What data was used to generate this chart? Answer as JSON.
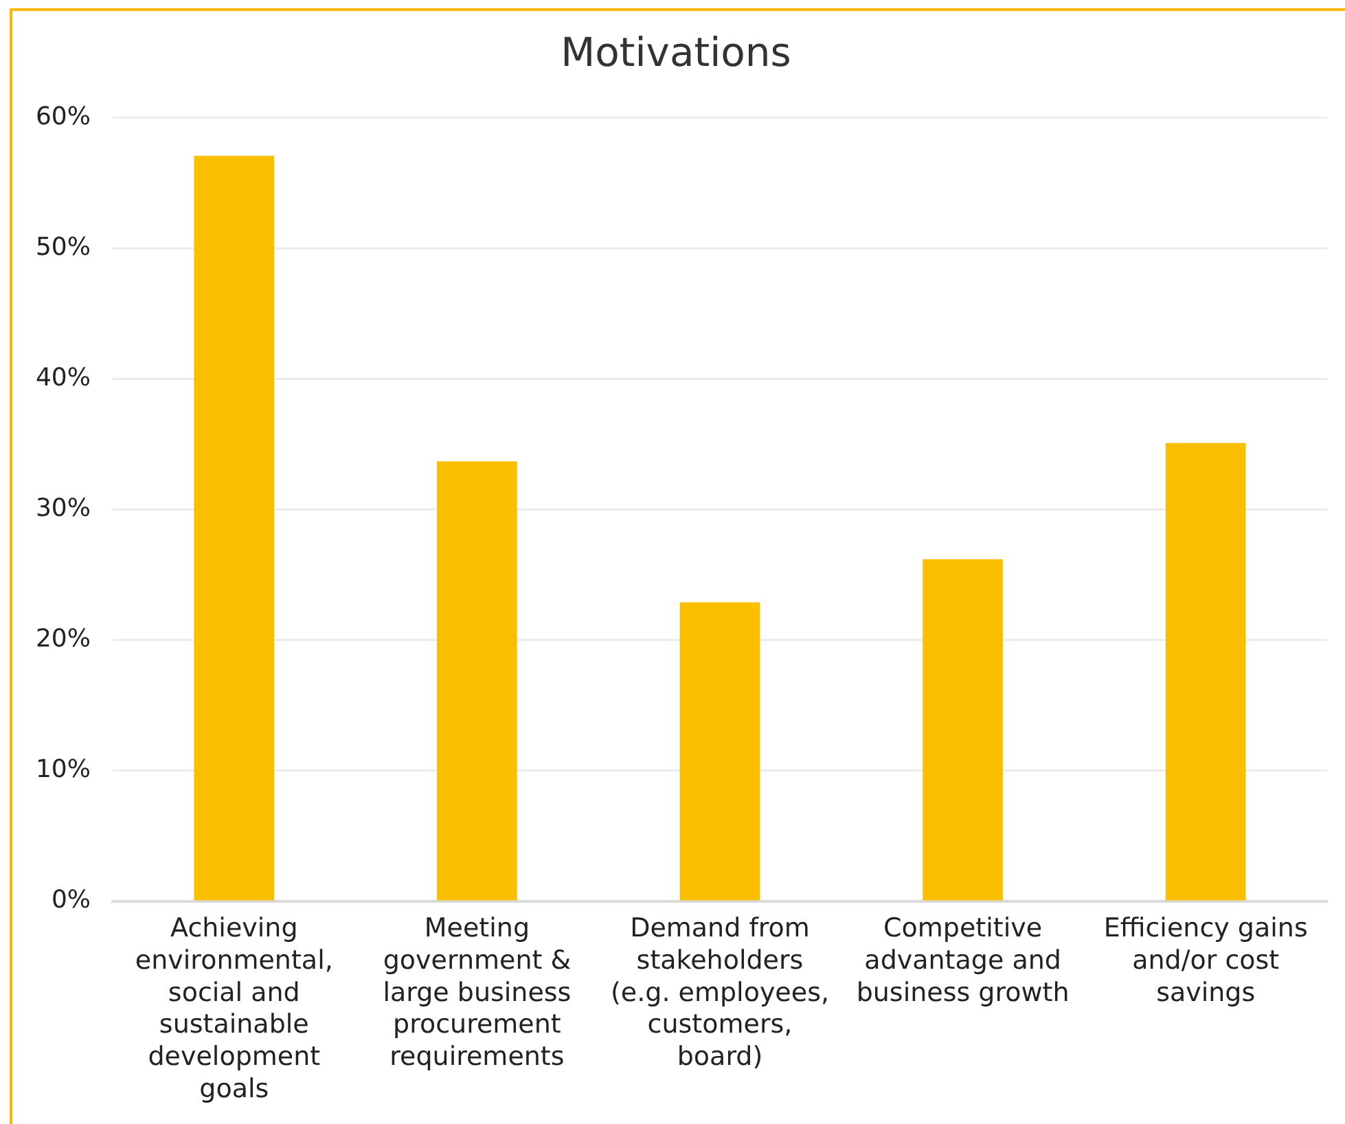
{
  "chart_data": {
    "type": "bar",
    "title": "Motivations",
    "categories": [
      "Achieving environmental, social and sustainable development goals",
      "Meeting government & large business procurement requirements",
      "Demand from stakeholders (e.g. employees, customers, board)",
      "Competitive advantage and business growth",
      "Efficiency gains and/or cost savings"
    ],
    "values": [
      57.1,
      33.7,
      22.9,
      26.2,
      35.1
    ],
    "color": "#fac000",
    "ylim": [
      0,
      60
    ],
    "yticks": [
      {
        "value": 0,
        "label": "0%"
      },
      {
        "value": 10,
        "label": "10%"
      },
      {
        "value": 20,
        "label": "20%"
      },
      {
        "value": 30,
        "label": "30%"
      },
      {
        "value": 40,
        "label": "40%"
      },
      {
        "value": 50,
        "label": "50%"
      },
      {
        "value": 60,
        "label": "60%"
      }
    ],
    "grid": "y"
  }
}
